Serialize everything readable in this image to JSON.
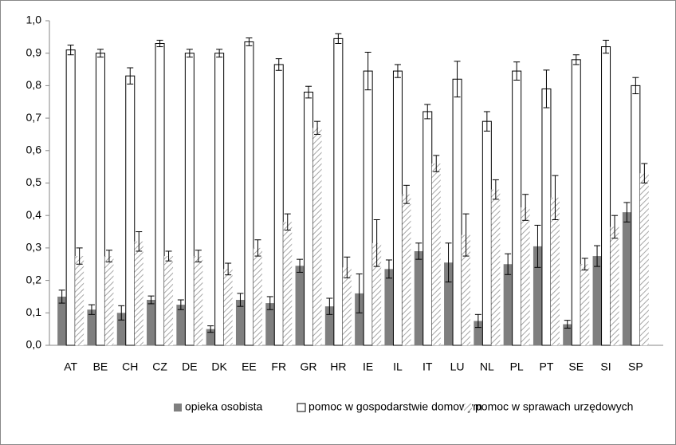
{
  "chart_data": {
    "type": "bar",
    "categories": [
      "AT",
      "BE",
      "CH",
      "CZ",
      "DE",
      "DK",
      "EE",
      "FR",
      "GR",
      "HR",
      "IE",
      "IL",
      "IT",
      "LU",
      "NL",
      "PL",
      "PT",
      "SE",
      "SI",
      "SP"
    ],
    "series": [
      {
        "name": "opieka osobista",
        "color": "#7f7f7f",
        "values": [
          0.15,
          0.11,
          0.1,
          0.14,
          0.125,
          0.05,
          0.14,
          0.13,
          0.245,
          0.12,
          0.16,
          0.235,
          0.29,
          0.255,
          0.075,
          0.25,
          0.305,
          0.065,
          0.275,
          0.41
        ],
        "errors": [
          0.02,
          0.015,
          0.022,
          0.012,
          0.015,
          0.01,
          0.02,
          0.02,
          0.02,
          0.025,
          0.06,
          0.028,
          0.025,
          0.06,
          0.02,
          0.032,
          0.065,
          0.012,
          0.032,
          0.03
        ]
      },
      {
        "name": "pomoc w gospodarstwie domowym",
        "color": "#ffffff",
        "values": [
          0.91,
          0.9,
          0.83,
          0.93,
          0.9,
          0.9,
          0.935,
          0.865,
          0.78,
          0.945,
          0.845,
          0.845,
          0.72,
          0.82,
          0.69,
          0.845,
          0.79,
          0.88,
          0.92,
          0.8
        ],
        "errors": [
          0.015,
          0.012,
          0.025,
          0.01,
          0.012,
          0.012,
          0.012,
          0.018,
          0.018,
          0.015,
          0.058,
          0.02,
          0.022,
          0.055,
          0.03,
          0.028,
          0.058,
          0.015,
          0.02,
          0.025
        ]
      },
      {
        "name": "pomoc w sprawach urzędowych",
        "color": "#a6a6a6",
        "hatch": true,
        "values": [
          0.275,
          0.275,
          0.32,
          0.275,
          0.275,
          0.235,
          0.3,
          0.38,
          0.67,
          0.24,
          0.315,
          0.465,
          0.56,
          0.34,
          0.48,
          0.425,
          0.455,
          0.25,
          0.365,
          0.53
        ],
        "errors": [
          0.025,
          0.018,
          0.03,
          0.015,
          0.018,
          0.018,
          0.025,
          0.025,
          0.02,
          0.032,
          0.072,
          0.028,
          0.025,
          0.065,
          0.03,
          0.04,
          0.068,
          0.018,
          0.035,
          0.03
        ]
      }
    ],
    "ylim": [
      0,
      1
    ],
    "yticks": [
      {
        "value": 0,
        "label": "0,0"
      },
      {
        "value": 0.1,
        "label": "0,1"
      },
      {
        "value": 0.2,
        "label": "0,2"
      },
      {
        "value": 0.3,
        "label": "0,3"
      },
      {
        "value": 0.4,
        "label": "0,4"
      },
      {
        "value": 0.5,
        "label": "0,5"
      },
      {
        "value": 0.6,
        "label": "0,6"
      },
      {
        "value": 0.7,
        "label": "0,7"
      },
      {
        "value": 0.8,
        "label": "0,8"
      },
      {
        "value": 0.9,
        "label": "0,9"
      },
      {
        "value": 1,
        "label": "1,0"
      }
    ],
    "grid": false,
    "legend": "bottom"
  }
}
